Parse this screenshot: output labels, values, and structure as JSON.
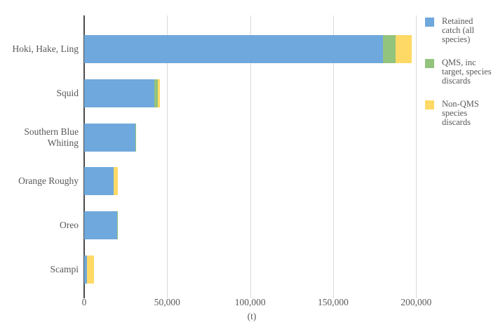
{
  "colors": {
    "series_blue": "#6FA8DC",
    "series_green": "#93C47D",
    "series_yellow": "#FFD966",
    "gridline": "#D8D8D8",
    "zero_axis": "#4A4A4A",
    "text": "#595959",
    "background": "#ffffff"
  },
  "chart_data": {
    "type": "bar",
    "orientation": "horizontal",
    "title": "",
    "xlabel": "(t)",
    "ylabel": "",
    "grid": true,
    "legend_position": "right",
    "xlim": [
      0,
      202000
    ],
    "xticks": [
      0,
      50000,
      100000,
      150000,
      200000
    ],
    "xtick_labels": [
      "0",
      "50,000",
      "100,000",
      "150,000",
      "200,000"
    ],
    "categories": [
      "Hoki, Hake, Ling",
      "Squid",
      "Southern Blue Whiting",
      "Orange Roughy",
      "Oreo",
      "Scampi"
    ],
    "series": [
      {
        "name": "Retained catch (all species)",
        "color": "#6FA8DC",
        "values": [
          180000,
          42300,
          30900,
          17800,
          19900,
          1500
        ]
      },
      {
        "name": "QMS, inc target, species discards",
        "color": "#93C47D",
        "values": [
          7500,
          2100,
          400,
          0,
          400,
          300
        ]
      },
      {
        "name": "Non-QMS species discards",
        "color": "#FFD966",
        "values": [
          10000,
          1300,
          0,
          2500,
          0,
          4200
        ]
      }
    ],
    "legend_lines": [
      [
        "Retained",
        "catch (all",
        "species)"
      ],
      [
        "QMS, inc",
        "target, species",
        "discards"
      ],
      [
        "Non-QMS",
        "species",
        "discards"
      ]
    ]
  }
}
